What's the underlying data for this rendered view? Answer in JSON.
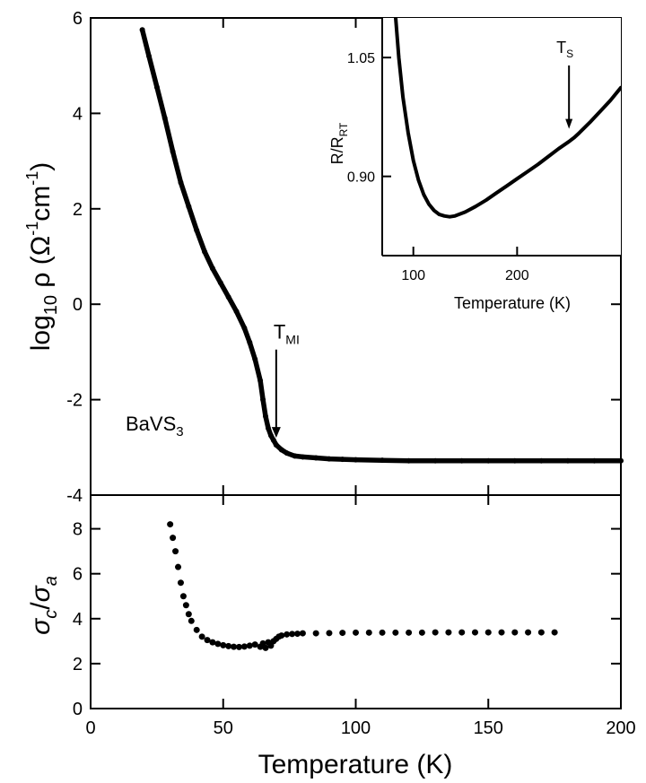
{
  "chart_data": [
    {
      "type": "scatter",
      "panel": "top",
      "xlabel": "Temperature (K)",
      "ylabel": "log10 ρ (Ω-1cm-1)",
      "ylabel_parts": {
        "log": "log",
        "sub10": "10",
        "rho": " ρ  (Ω",
        "sup1": "-1",
        "cm": "cm",
        "sup2": "-1",
        "close": ")"
      },
      "xlim": [
        0,
        200
      ],
      "ylim": [
        -4,
        6
      ],
      "yticks": [
        "-4",
        "-2",
        "0",
        "2",
        "4",
        "6"
      ],
      "sample_label": {
        "main": "BaVS",
        "sub": "3"
      },
      "annotation": {
        "main": "T",
        "sub": "MI",
        "x": 70,
        "y_top": -0.95,
        "y_tip": -2.8
      },
      "x": [
        19.5,
        22,
        25,
        28,
        31,
        34,
        37,
        40,
        43,
        46,
        49,
        52,
        55,
        58,
        60,
        62,
        64,
        65,
        66,
        67,
        68,
        69,
        70,
        72,
        74,
        77,
        80,
        85,
        90,
        95,
        100,
        110,
        120,
        130,
        140,
        150,
        160,
        170,
        180,
        190,
        200
      ],
      "values": [
        5.75,
        5.2,
        4.55,
        3.9,
        3.2,
        2.55,
        2.05,
        1.55,
        1.1,
        0.75,
        0.45,
        0.15,
        -0.15,
        -0.5,
        -0.8,
        -1.15,
        -1.6,
        -2.0,
        -2.35,
        -2.6,
        -2.75,
        -2.85,
        -2.95,
        -3.05,
        -3.12,
        -3.18,
        -3.2,
        -3.22,
        -3.24,
        -3.25,
        -3.26,
        -3.27,
        -3.28,
        -3.28,
        -3.28,
        -3.28,
        -3.28,
        -3.28,
        -3.28,
        -3.28,
        -3.28
      ]
    },
    {
      "type": "scatter",
      "panel": "bottom",
      "xlabel": "Temperature (K)",
      "ylabel": "σc/σa",
      "ylabel_parts": {
        "s1": "σ",
        "c": "c",
        "slash": "/",
        "s2": "σ",
        "a": "a"
      },
      "xlim": [
        0,
        200
      ],
      "ylim": [
        0,
        9.5
      ],
      "xticks": [
        "0",
        "50",
        "100",
        "150",
        "200"
      ],
      "yticks": [
        "0",
        "2",
        "4",
        "6",
        "8"
      ],
      "x": [
        30,
        31,
        32,
        33,
        34,
        35,
        36,
        37,
        38,
        40,
        42,
        44,
        46,
        48,
        50,
        52,
        54,
        56,
        58,
        60,
        62,
        64,
        65,
        66,
        67,
        68,
        69,
        70,
        71,
        72,
        74,
        76,
        78,
        80,
        85,
        90,
        95,
        100,
        105,
        110,
        115,
        120,
        125,
        130,
        135,
        140,
        145,
        150,
        155,
        160,
        165,
        170,
        175
      ],
      "values": [
        8.2,
        7.6,
        7.0,
        6.3,
        5.6,
        5.0,
        4.6,
        4.2,
        3.9,
        3.5,
        3.2,
        3.05,
        2.95,
        2.88,
        2.82,
        2.78,
        2.75,
        2.74,
        2.76,
        2.8,
        2.85,
        2.75,
        2.9,
        2.7,
        2.95,
        2.8,
        3.0,
        3.1,
        3.2,
        3.25,
        3.3,
        3.32,
        3.33,
        3.35,
        3.35,
        3.36,
        3.37,
        3.38,
        3.38,
        3.38,
        3.38,
        3.38,
        3.38,
        3.39,
        3.39,
        3.39,
        3.39,
        3.39,
        3.39,
        3.39,
        3.39,
        3.39,
        3.39
      ]
    },
    {
      "type": "line",
      "panel": "inset",
      "xlabel": "Temperature (K)",
      "ylabel": "R/RRT",
      "ylabel_parts": {
        "main": "R/R",
        "sub": "RT"
      },
      "xlim": [
        70,
        300
      ],
      "ylim": [
        0.8,
        1.1
      ],
      "xticks": [
        "100",
        "200"
      ],
      "yticks": [
        "0.90",
        "1.05"
      ],
      "annotation": {
        "main": "T",
        "sub": "S",
        "x": 250,
        "y_top": 1.04,
        "y_tip": 0.96
      },
      "x": [
        83,
        86,
        90,
        95,
        100,
        105,
        110,
        115,
        120,
        125,
        130,
        135,
        140,
        150,
        160,
        170,
        180,
        190,
        200,
        210,
        220,
        230,
        240,
        250,
        255,
        260,
        270,
        280,
        290,
        300
      ],
      "values": [
        1.1,
        1.05,
        1.0,
        0.955,
        0.92,
        0.895,
        0.877,
        0.865,
        0.857,
        0.852,
        0.85,
        0.849,
        0.85,
        0.855,
        0.862,
        0.87,
        0.879,
        0.888,
        0.897,
        0.906,
        0.915,
        0.925,
        0.935,
        0.944,
        0.949,
        0.955,
        0.968,
        0.982,
        0.996,
        1.012
      ]
    }
  ]
}
